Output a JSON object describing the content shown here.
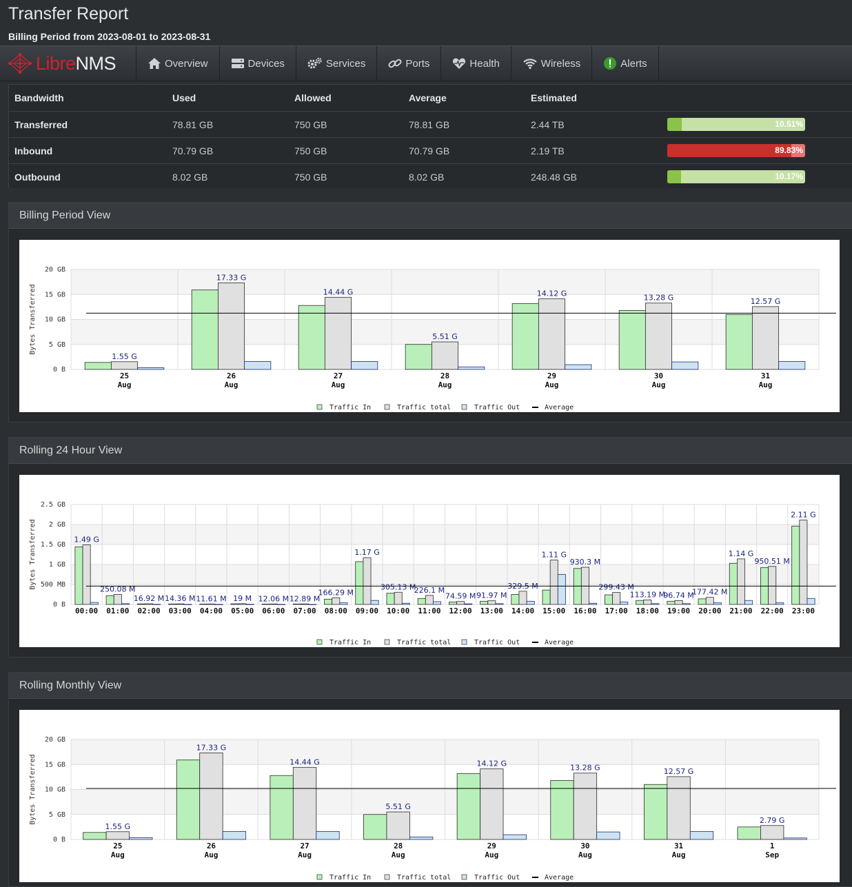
{
  "page": {
    "title": "Transfer Report",
    "subtitle": "Billing Period from 2023-08-01 to 2023-08-31"
  },
  "nav": {
    "brand_libre": "Libre",
    "brand_nms": "NMS",
    "items": [
      {
        "label": "Overview",
        "icon": "home-icon"
      },
      {
        "label": "Devices",
        "icon": "server-icon"
      },
      {
        "label": "Services",
        "icon": "cogs-icon"
      },
      {
        "label": "Ports",
        "icon": "link-icon"
      },
      {
        "label": "Health",
        "icon": "heartbeat-icon"
      },
      {
        "label": "Wireless",
        "icon": "wifi-icon"
      },
      {
        "label": "Alerts",
        "icon": "alert-circle-icon"
      }
    ]
  },
  "stats": {
    "headers": [
      "Bandwidth",
      "Used",
      "Allowed",
      "Average",
      "Estimated"
    ],
    "rows": [
      {
        "label": "Transferred",
        "used": "78.81 GB",
        "allowed": "750 GB",
        "average": "78.81 GB",
        "estimated": "2.44 TB",
        "percent_text": "10.51%",
        "percent": 10.51,
        "status": "ok"
      },
      {
        "label": "Inbound",
        "used": "70.79 GB",
        "allowed": "750 GB",
        "average": "70.79 GB",
        "estimated": "2.19 TB",
        "percent_text": "89.83%",
        "percent": 89.83,
        "status": "danger"
      },
      {
        "label": "Outbound",
        "used": "8.02 GB",
        "allowed": "750 GB",
        "average": "8.02 GB",
        "estimated": "248.48 GB",
        "percent_text": "10.17%",
        "percent": 10.17,
        "status": "ok"
      }
    ],
    "colors": {
      "ok_fill": "#8bc34a",
      "ok_bg": "#c5e1a5",
      "danger_fill": "#c9302c",
      "danger_bg": "#e57373"
    }
  },
  "panels": {
    "billing": "Billing Period View",
    "rolling24": "Rolling 24 Hour View",
    "monthly": "Rolling Monthly View"
  },
  "chart_data": [
    {
      "type": "bar",
      "ylabel": "Bytes Transferred",
      "yticks": [
        "0 B",
        "5 GB",
        "10 GB",
        "15 GB",
        "20 GB"
      ],
      "ylim": [
        0,
        20
      ],
      "unit": "GB",
      "categories": [
        [
          "25",
          "Aug"
        ],
        [
          "26",
          "Aug"
        ],
        [
          "27",
          "Aug"
        ],
        [
          "28",
          "Aug"
        ],
        [
          "29",
          "Aug"
        ],
        [
          "30",
          "Aug"
        ],
        [
          "31",
          "Aug"
        ]
      ],
      "series": [
        {
          "name": "Traffic In",
          "color": "#b9f0b9",
          "values": [
            1.4,
            15.9,
            12.8,
            5.0,
            13.2,
            11.8,
            11.0
          ]
        },
        {
          "name": "Traffic total",
          "color": "#e0e0e0",
          "values": [
            1.55,
            17.33,
            14.44,
            5.51,
            14.12,
            13.28,
            12.57
          ]
        },
        {
          "name": "Traffic Out",
          "color": "#cde4f0",
          "values": [
            0.35,
            1.6,
            1.6,
            0.5,
            0.95,
            1.5,
            1.6
          ]
        }
      ],
      "data_labels": [
        "1.55 G",
        "17.33 G",
        "14.44 G",
        "5.51 G",
        "14.12 G",
        "13.28 G",
        "12.57 G"
      ],
      "average": 11.26,
      "legend": [
        "Traffic In",
        "Traffic total",
        "Traffic Out",
        "Average"
      ],
      "legend_position": "bottom-center",
      "grid": true
    },
    {
      "type": "bar",
      "ylabel": "Bytes Transferred",
      "yticks": [
        "0 B",
        "500 MB",
        "1 GB",
        "1.5 GB",
        "2 GB",
        "2.5 GB"
      ],
      "ylim": [
        0,
        2.5
      ],
      "unit": "GB",
      "categories": [
        [
          "00:00"
        ],
        [
          "01:00"
        ],
        [
          "02:00"
        ],
        [
          "03:00"
        ],
        [
          "04:00"
        ],
        [
          "05:00"
        ],
        [
          "06:00"
        ],
        [
          "07:00"
        ],
        [
          "08:00"
        ],
        [
          "09:00"
        ],
        [
          "10:00"
        ],
        [
          "11:00"
        ],
        [
          "12:00"
        ],
        [
          "13:00"
        ],
        [
          "14:00"
        ],
        [
          "15:00"
        ],
        [
          "16:00"
        ],
        [
          "17:00"
        ],
        [
          "18:00"
        ],
        [
          "19:00"
        ],
        [
          "20:00"
        ],
        [
          "21:00"
        ],
        [
          "22:00"
        ],
        [
          "23:00"
        ]
      ],
      "series": [
        {
          "name": "Traffic In",
          "color": "#b9f0b9",
          "values": [
            1.44,
            0.22,
            0.014,
            0.012,
            0.01,
            0.016,
            0.01,
            0.011,
            0.13,
            1.07,
            0.28,
            0.15,
            0.06,
            0.08,
            0.25,
            0.36,
            0.9,
            0.24,
            0.1,
            0.08,
            0.14,
            1.03,
            0.92,
            1.96
          ]
        },
        {
          "name": "Traffic total",
          "color": "#e0e0e0",
          "values": [
            1.49,
            0.25008,
            0.01692,
            0.01436,
            0.01161,
            0.019,
            0.01206,
            0.01289,
            0.16629,
            1.17,
            0.30513,
            0.2261,
            0.07459,
            0.09197,
            0.3295,
            1.11,
            0.9303,
            0.29943,
            0.11319,
            0.09674,
            0.17742,
            1.14,
            0.95051,
            2.11
          ]
        },
        {
          "name": "Traffic Out",
          "color": "#cde4f0",
          "values": [
            0.05,
            0.02,
            0.003,
            0.002,
            0.002,
            0.003,
            0.002,
            0.002,
            0.04,
            0.1,
            0.03,
            0.07,
            0.015,
            0.02,
            0.08,
            0.75,
            0.03,
            0.06,
            0.02,
            0.02,
            0.04,
            0.1,
            0.04,
            0.15
          ]
        }
      ],
      "data_labels": [
        "1.49 G",
        "250.08 M",
        "16.92 M",
        "14.36 M",
        "11.61 M",
        "19 M",
        "12.06 M",
        "12.89 M",
        "166.29 M",
        "1.17 G",
        "305.13 M",
        "226.1 M",
        "74.59 M",
        "91.97 M",
        "329.5 M",
        "1.11 G",
        "930.3 M",
        "299.43 M",
        "113.19 M",
        "96.74 M",
        "177.42 M",
        "1.14 G",
        "950.51 M",
        "2.11 G"
      ],
      "average": 0.46,
      "legend": [
        "Traffic In",
        "Traffic total",
        "Traffic Out",
        "Average"
      ],
      "legend_position": "bottom-center",
      "grid": true
    },
    {
      "type": "bar",
      "ylabel": "Bytes Transferred",
      "yticks": [
        "0 B",
        "5 GB",
        "10 GB",
        "15 GB",
        "20 GB"
      ],
      "ylim": [
        0,
        20
      ],
      "unit": "GB",
      "categories": [
        [
          "25",
          "Aug"
        ],
        [
          "26",
          "Aug"
        ],
        [
          "27",
          "Aug"
        ],
        [
          "28",
          "Aug"
        ],
        [
          "29",
          "Aug"
        ],
        [
          "30",
          "Aug"
        ],
        [
          "31",
          "Aug"
        ],
        [
          "1",
          "Sep"
        ]
      ],
      "series": [
        {
          "name": "Traffic In",
          "color": "#b9f0b9",
          "values": [
            1.4,
            15.9,
            12.8,
            5.0,
            13.2,
            11.8,
            11.0,
            2.5
          ]
        },
        {
          "name": "Traffic total",
          "color": "#e0e0e0",
          "values": [
            1.55,
            17.33,
            14.44,
            5.51,
            14.12,
            13.28,
            12.57,
            2.79
          ]
        },
        {
          "name": "Traffic Out",
          "color": "#cde4f0",
          "values": [
            0.35,
            1.6,
            1.6,
            0.5,
            0.95,
            1.5,
            1.6,
            0.3
          ]
        }
      ],
      "data_labels": [
        "1.55 G",
        "17.33 G",
        "14.44 G",
        "5.51 G",
        "14.12 G",
        "13.28 G",
        "12.57 G",
        "2.79 G"
      ],
      "average": 10.2,
      "legend": [
        "Traffic In",
        "Traffic total",
        "Traffic Out",
        "Average"
      ],
      "legend_position": "bottom-center",
      "grid": true
    }
  ]
}
